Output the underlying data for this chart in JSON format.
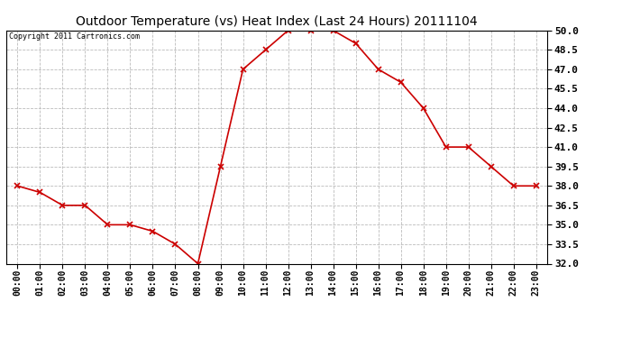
{
  "title": "Outdoor Temperature (vs) Heat Index (Last 24 Hours) 20111104",
  "copyright": "Copyright 2011 Cartronics.com",
  "hours": [
    "00:00",
    "01:00",
    "02:00",
    "03:00",
    "04:00",
    "05:00",
    "06:00",
    "07:00",
    "08:00",
    "09:00",
    "10:00",
    "11:00",
    "12:00",
    "13:00",
    "14:00",
    "15:00",
    "16:00",
    "17:00",
    "18:00",
    "19:00",
    "20:00",
    "21:00",
    "22:00",
    "23:00"
  ],
  "values": [
    38.0,
    37.5,
    36.5,
    36.5,
    35.0,
    35.0,
    34.5,
    33.5,
    32.0,
    39.5,
    47.0,
    48.5,
    50.0,
    50.0,
    50.0,
    49.0,
    47.0,
    46.0,
    44.0,
    41.0,
    41.0,
    39.5,
    38.0,
    38.0
  ],
  "y_min": 32.0,
  "y_max": 50.0,
  "y_tick_interval": 1.5,
  "line_color": "#cc0000",
  "marker": "x",
  "marker_size": 4,
  "marker_linewidth": 1.2,
  "line_width": 1.2,
  "bg_color": "#ffffff",
  "grid_color": "#bbbbbb",
  "title_fontsize": 10,
  "copyright_fontsize": 6,
  "tick_fontsize": 7,
  "ytick_fontsize": 8
}
